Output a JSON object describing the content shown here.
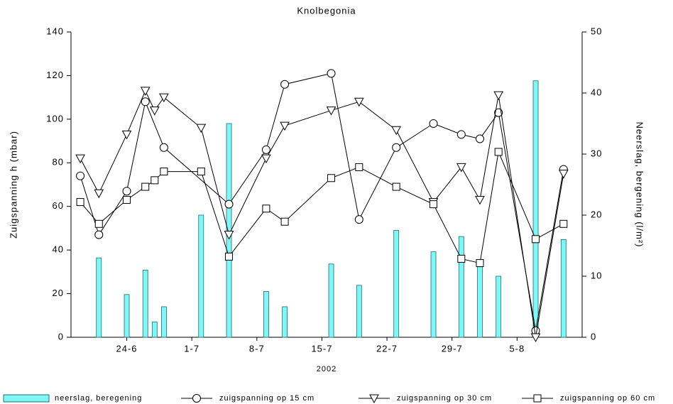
{
  "chart_data": {
    "type": "combo",
    "title": "Knolbegonia",
    "xlabel": "2002",
    "ylabel": "Zuigspanning h (mbar)",
    "y2label": "Neerslag, bergening (l/m²)",
    "xlim": [
      "2002-06-18",
      "2002-08-12"
    ],
    "xticks": [
      {
        "value": "2002-06-24",
        "label": "24-6"
      },
      {
        "value": "2002-07-01",
        "label": "1-7"
      },
      {
        "value": "2002-07-08",
        "label": "8-7"
      },
      {
        "value": "2002-07-15",
        "label": "15-7"
      },
      {
        "value": "2002-07-22",
        "label": "22-7"
      },
      {
        "value": "2002-07-29",
        "label": "29-7"
      },
      {
        "value": "2002-08-05",
        "label": "5-8"
      }
    ],
    "ylim": [
      0,
      140
    ],
    "yticks": [
      0,
      20,
      40,
      60,
      80,
      100,
      120,
      140
    ],
    "y2lim": [
      0,
      50
    ],
    "y2ticks": [
      0,
      10,
      20,
      30,
      40,
      50
    ],
    "legend": "bottom",
    "series": [
      {
        "name": "neerslag, beregening",
        "type": "bar",
        "axis": "y2",
        "color": "#7ff7f7",
        "x": [
          "2002-06-21",
          "2002-06-24",
          "2002-06-26",
          "2002-06-27",
          "2002-06-28",
          "2002-07-02",
          "2002-07-05",
          "2002-07-09",
          "2002-07-11",
          "2002-07-16",
          "2002-07-19",
          "2002-07-23",
          "2002-07-27",
          "2002-07-30",
          "2002-08-01",
          "2002-08-03",
          "2002-08-07",
          "2002-08-10"
        ],
        "values": [
          13,
          7,
          11,
          2.5,
          5,
          20,
          35,
          7.5,
          5,
          12,
          8.5,
          17.5,
          14,
          16.5,
          12,
          10,
          42,
          16
        ]
      },
      {
        "name": "zuigspanning op 15 cm",
        "type": "line",
        "marker": "circle",
        "color": "#000000",
        "x": [
          "2002-06-19",
          "2002-06-21",
          "2002-06-24",
          "2002-06-26",
          "2002-06-28",
          "2002-07-05",
          "2002-07-09",
          "2002-07-11",
          "2002-07-16",
          "2002-07-19",
          "2002-07-23",
          "2002-07-27",
          "2002-07-30",
          "2002-08-01",
          "2002-08-03",
          "2002-08-07",
          "2002-08-10"
        ],
        "values": [
          74,
          47,
          67,
          108,
          87,
          61,
          86,
          116,
          121,
          54,
          87,
          98,
          93,
          91,
          103,
          3,
          77
        ]
      },
      {
        "name": "zuigspanning op 30 cm",
        "type": "line",
        "marker": "triangle-down",
        "color": "#000000",
        "x": [
          "2002-06-19",
          "2002-06-21",
          "2002-06-24",
          "2002-06-26",
          "2002-06-27",
          "2002-06-28",
          "2002-07-02",
          "2002-07-05",
          "2002-07-09",
          "2002-07-11",
          "2002-07-16",
          "2002-07-19",
          "2002-07-23",
          "2002-07-27",
          "2002-07-30",
          "2002-08-01",
          "2002-08-03",
          "2002-08-07",
          "2002-08-10"
        ],
        "values": [
          82,
          66,
          93,
          113,
          104,
          110,
          96,
          47,
          82,
          97,
          104,
          108,
          95,
          62,
          78,
          63,
          111,
          0,
          75
        ]
      },
      {
        "name": "zuigspanning op 60 cm",
        "type": "line",
        "marker": "square",
        "color": "#000000",
        "x": [
          "2002-06-19",
          "2002-06-21",
          "2002-06-24",
          "2002-06-26",
          "2002-06-27",
          "2002-06-28",
          "2002-07-02",
          "2002-07-05",
          "2002-07-09",
          "2002-07-11",
          "2002-07-16",
          "2002-07-19",
          "2002-07-23",
          "2002-07-27",
          "2002-07-30",
          "2002-08-01",
          "2002-08-03",
          "2002-08-07",
          "2002-08-10"
        ],
        "values": [
          62,
          52,
          63,
          69,
          72,
          76,
          76,
          37,
          59,
          53,
          73,
          78,
          69,
          61,
          36,
          34,
          85,
          45,
          52
        ]
      }
    ]
  }
}
